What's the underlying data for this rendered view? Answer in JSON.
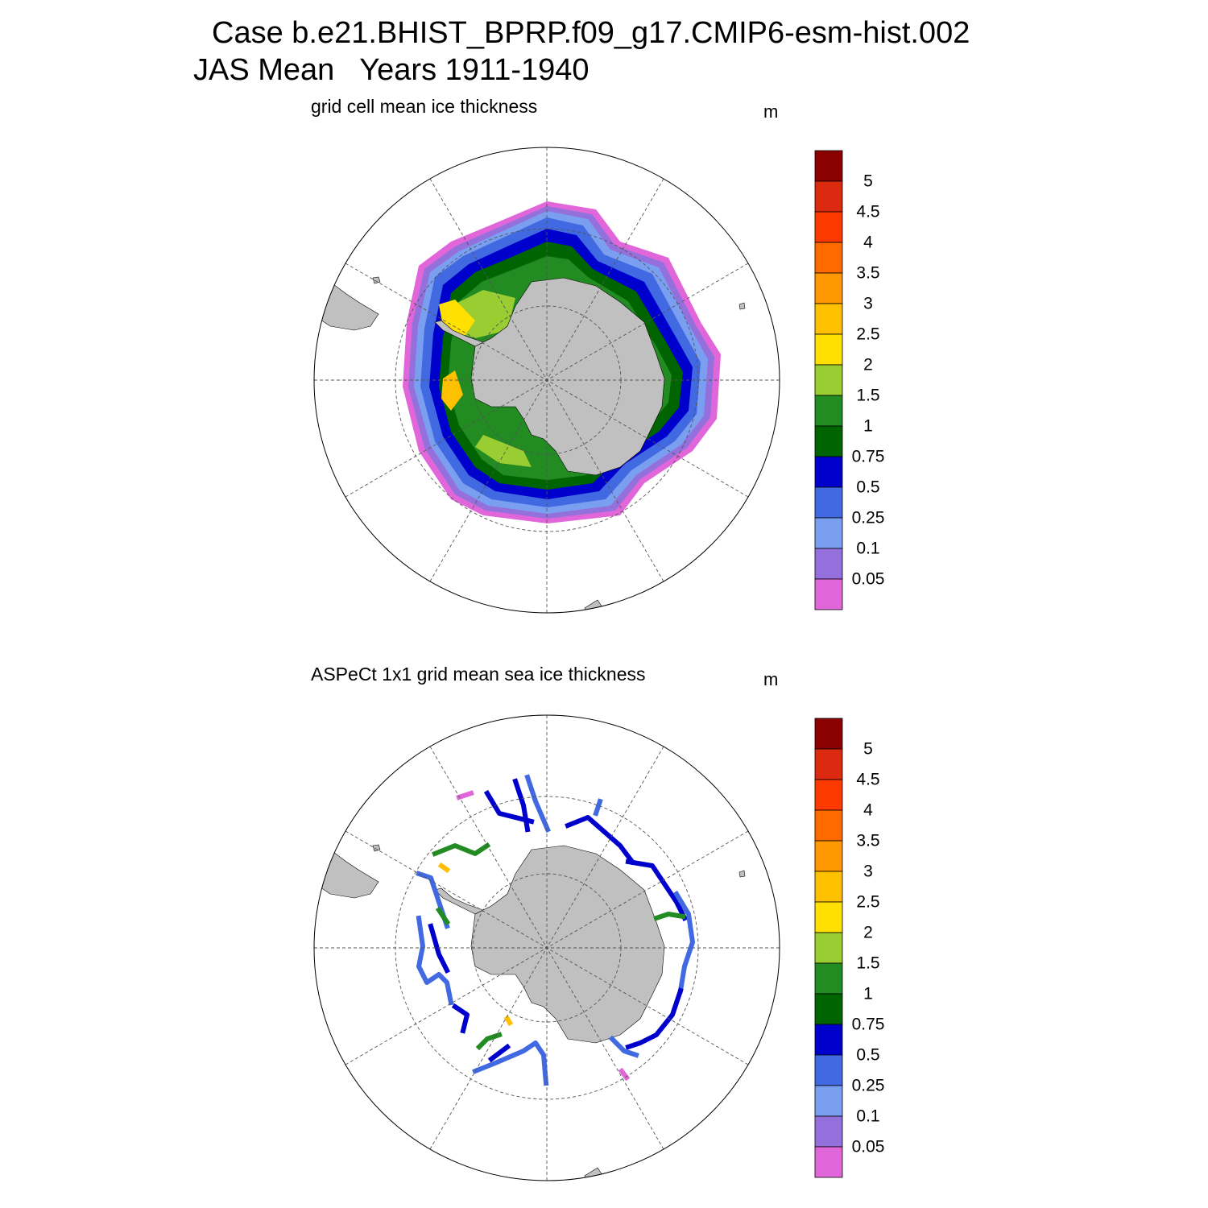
{
  "title": {
    "line1": "Case b.e21.BHIST_BPRP.f09_g17.CMIP6-esm-hist.002",
    "line2": "JAS Mean   Years 1911-1940"
  },
  "panels": [
    {
      "subtitle": "grid cell mean ice thickness",
      "units": "m",
      "field": "model ice thickness"
    },
    {
      "subtitle": "ASPeCt 1x1 grid mean sea ice thickness",
      "units": "m",
      "field": "observed ice thickness (ship tracks)"
    }
  ],
  "colorbar": {
    "labels": [
      "5",
      "4.5",
      "4",
      "3.5",
      "3",
      "2.5",
      "2",
      "1.5",
      "1",
      "0.75",
      "0.5",
      "0.25",
      "0.1",
      "0.05"
    ],
    "colors_top_to_bottom": [
      "#8b0000",
      "#dc2a10",
      "#ff3a00",
      "#ff6a00",
      "#ff9800",
      "#ffc000",
      "#ffe000",
      "#9acd32",
      "#228b22",
      "#006400",
      "#0000cd",
      "#4169e1",
      "#7b9ff0",
      "#9370db",
      "#e066d9"
    ]
  },
  "map_style": {
    "land_color": "#c0c0c0",
    "ocean_color": "#ffffff",
    "projection": "south polar stereographic",
    "graticule": "dashed"
  }
}
